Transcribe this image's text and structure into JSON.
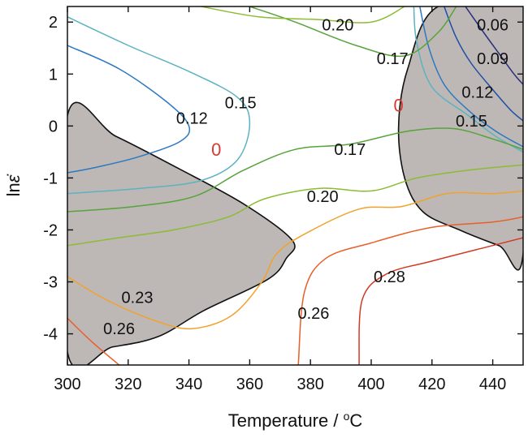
{
  "chart_data": {
    "type": "contour",
    "xlabel": "Temperature / °C",
    "xlabel_main": "Temperature / ",
    "xlabel_sup": "o",
    "xlabel_unit": "C",
    "ylabel": "lnε̇",
    "ylabel_main": "ln",
    "ylabel_symbol": "ε̇",
    "xlim": [
      300,
      450
    ],
    "ylim": [
      -4.6,
      2.3
    ],
    "x_ticks": [
      300,
      320,
      340,
      360,
      380,
      400,
      420,
      440
    ],
    "y_ticks": [
      2,
      1,
      0,
      -1,
      -2,
      -3,
      -4
    ],
    "x_tick_labels": [
      "300",
      "320",
      "340",
      "360",
      "380",
      "400",
      "420",
      "440"
    ],
    "y_tick_labels": [
      "2",
      "1",
      "0",
      "-1",
      "-2",
      "-3",
      "-4"
    ],
    "grid": false,
    "unstable_region_color": "#bdb8b5",
    "contours": [
      {
        "level": 0.06,
        "label": "0.06",
        "color": "#2b2e7c",
        "points": [
          [
            431,
            2.3
          ],
          [
            437,
            1.8
          ],
          [
            442,
            1.4
          ],
          [
            447,
            1.0
          ],
          [
            450,
            0.8
          ]
        ]
      },
      {
        "level": 0.09,
        "label": "0.09",
        "color": "#1d4fa3",
        "points": [
          [
            424,
            2.3
          ],
          [
            428,
            1.7
          ],
          [
            433,
            1.2
          ],
          [
            440,
            0.7
          ],
          [
            446,
            0.3
          ],
          [
            450,
            0.1
          ]
        ]
      },
      {
        "level": 0.12,
        "label": "0.12",
        "color": "#2b79c2",
        "points": [
          [
            300,
            1.55
          ],
          [
            317,
            1.1
          ],
          [
            333,
            0.45
          ],
          [
            340,
            0.0
          ],
          [
            337,
            -0.3
          ],
          [
            323,
            -0.6
          ],
          [
            309,
            -0.8
          ],
          [
            300,
            -0.9
          ]
        ]
      },
      {
        "level": 0.12,
        "label": "0.12",
        "color": "#2b79c2",
        "points": [
          [
            416,
            2.3
          ],
          [
            419,
            1.5
          ],
          [
            424,
            0.8
          ],
          [
            432,
            0.3
          ],
          [
            441,
            -0.1
          ],
          [
            450,
            -0.4
          ]
        ]
      },
      {
        "level": 0.15,
        "label": "0.15",
        "color": "#5bb3c0",
        "points": [
          [
            300,
            2.1
          ],
          [
            320,
            1.55
          ],
          [
            340,
            1.05
          ],
          [
            356,
            0.55
          ],
          [
            360,
            0.05
          ],
          [
            356,
            -0.65
          ],
          [
            344,
            -1.05
          ],
          [
            324,
            -1.2
          ],
          [
            300,
            -1.3
          ]
        ]
      },
      {
        "level": 0.15,
        "label": "0.15",
        "color": "#5bb3c0",
        "points": [
          [
            414,
            2.3
          ],
          [
            415,
            1.6
          ],
          [
            420,
            0.75
          ],
          [
            432,
            0.2
          ],
          [
            441,
            -0.2
          ],
          [
            450,
            -0.5
          ]
        ]
      },
      {
        "level": 0.17,
        "label": "0.17",
        "color": "#57a33a",
        "points": [
          [
            300,
            -1.65
          ],
          [
            322,
            -1.55
          ],
          [
            342,
            -1.35
          ],
          [
            358,
            -0.85
          ],
          [
            375,
            -0.45
          ],
          [
            393,
            -0.35
          ],
          [
            412,
            -0.1
          ],
          [
            427,
            -0.05
          ],
          [
            440,
            -0.25
          ],
          [
            450,
            -0.45
          ]
        ]
      },
      {
        "level": 0.17,
        "label": "0.17",
        "color": "#57a33a",
        "points": [
          [
            360,
            2.3
          ],
          [
            375,
            2.0
          ],
          [
            395,
            1.55
          ],
          [
            411,
            1.35
          ],
          [
            422,
            1.8
          ],
          [
            428,
            2.3
          ]
        ]
      },
      {
        "level": 0.2,
        "label": "0.20",
        "color": "#8cbb34",
        "points": [
          [
            300,
            -2.3
          ],
          [
            317,
            -2.15
          ],
          [
            335,
            -2.0
          ],
          [
            353,
            -1.75
          ],
          [
            365,
            -1.4
          ],
          [
            383,
            -1.2
          ],
          [
            400,
            -1.25
          ],
          [
            415,
            -1.0
          ],
          [
            432,
            -0.85
          ],
          [
            450,
            -0.75
          ]
        ]
      },
      {
        "level": 0.2,
        "label": "0.20",
        "color": "#8cbb34",
        "points": [
          [
            344,
            2.3
          ],
          [
            363,
            2.1
          ],
          [
            382,
            2.05
          ],
          [
            400,
            2.0
          ],
          [
            411,
            2.3
          ]
        ]
      },
      {
        "level": 0.23,
        "label": "0.23",
        "color": "#f0a22d",
        "points": [
          [
            300,
            -2.9
          ],
          [
            313,
            -3.35
          ],
          [
            329,
            -3.75
          ],
          [
            341,
            -3.9
          ],
          [
            354,
            -3.65
          ],
          [
            364,
            -3.0
          ],
          [
            369,
            -2.45
          ],
          [
            379,
            -2.05
          ],
          [
            396,
            -1.6
          ],
          [
            410,
            -1.55
          ],
          [
            425,
            -1.3
          ],
          [
            440,
            -1.3
          ],
          [
            450,
            -1.25
          ]
        ]
      },
      {
        "level": 0.26,
        "label": "0.26",
        "color": "#e85f2a",
        "points": [
          [
            300,
            -3.7
          ],
          [
            308,
            -4.15
          ],
          [
            317,
            -4.6
          ]
        ]
      },
      {
        "level": 0.26,
        "label": "0.26",
        "color": "#e85f2a",
        "points": [
          [
            376,
            -4.6
          ],
          [
            378,
            -3.2
          ],
          [
            385,
            -2.55
          ],
          [
            400,
            -2.25
          ],
          [
            420,
            -1.95
          ],
          [
            440,
            -1.85
          ],
          [
            450,
            -1.75
          ]
        ]
      },
      {
        "level": 0.28,
        "label": "0.28",
        "color": "#d23a26",
        "points": [
          [
            396,
            -4.6
          ],
          [
            397,
            -3.35
          ],
          [
            405,
            -2.85
          ],
          [
            420,
            -2.6
          ],
          [
            440,
            -2.3
          ],
          [
            450,
            -2.15
          ]
        ]
      }
    ],
    "unstable_regions": [
      {
        "points": [
          [
            300,
            0.2
          ],
          [
            316,
            -0.2
          ],
          [
            336,
            -0.8
          ],
          [
            358,
            -1.5
          ],
          [
            374,
            -2.2
          ],
          [
            372,
            -2.55
          ],
          [
            366,
            -2.95
          ],
          [
            345,
            -3.55
          ],
          [
            330,
            -4.05
          ],
          [
            315,
            -4.25
          ],
          [
            300,
            -4.35
          ]
        ]
      },
      {
        "points": [
          [
            422,
            2.3
          ],
          [
            412,
            1.1
          ],
          [
            409,
            0.0
          ],
          [
            411,
            -1.0
          ],
          [
            417,
            -1.65
          ],
          [
            429,
            -2.0
          ],
          [
            442,
            -2.3
          ],
          [
            450,
            -2.45
          ],
          [
            450,
            2.3
          ]
        ]
      }
    ],
    "annotations": [
      {
        "text": "0.06",
        "x": 440,
        "y": 1.95
      },
      {
        "text": "0.09",
        "x": 440,
        "y": 1.3
      },
      {
        "text": "0.12",
        "x": 341,
        "y": 0.15
      },
      {
        "text": "0.12",
        "x": 435,
        "y": 0.65
      },
      {
        "text": "0.15",
        "x": 357,
        "y": 0.45
      },
      {
        "text": "0.15",
        "x": 433,
        "y": 0.1
      },
      {
        "text": "0.17",
        "x": 407,
        "y": 1.3
      },
      {
        "text": "0.17",
        "x": 393,
        "y": -0.45
      },
      {
        "text": "0.20",
        "x": 389,
        "y": 1.95
      },
      {
        "text": "0.20",
        "x": 384,
        "y": -1.35
      },
      {
        "text": "0.23",
        "x": 323,
        "y": -3.3
      },
      {
        "text": "0.26",
        "x": 317,
        "y": -3.9
      },
      {
        "text": "0.26",
        "x": 381,
        "y": -3.6
      },
      {
        "text": "0.28",
        "x": 406,
        "y": -2.9
      }
    ],
    "zero_labels": [
      {
        "text": "0",
        "x": 349,
        "y": -0.45
      },
      {
        "text": "0",
        "x": 409,
        "y": 0.4
      }
    ]
  }
}
